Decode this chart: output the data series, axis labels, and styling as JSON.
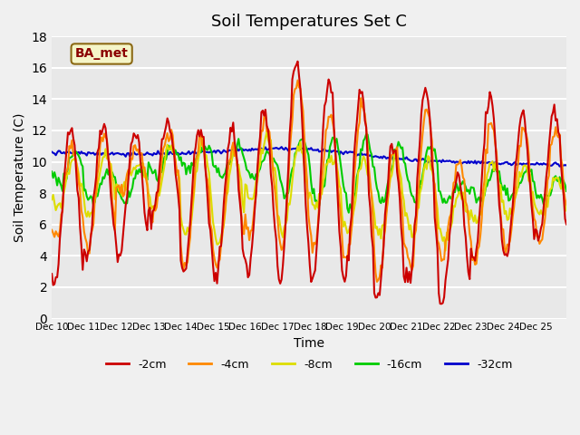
{
  "title": "Soil Temperatures Set C",
  "xlabel": "Time",
  "ylabel": "Soil Temperature (C)",
  "ylim": [
    0,
    18
  ],
  "x_tick_labels": [
    "Dec 10",
    "Dec 11",
    "Dec 12",
    "Dec 13",
    "Dec 14",
    "Dec 15",
    "Dec 16",
    "Dec 17",
    "Dec 18",
    "Dec 19",
    "Dec 20",
    "Dec 21",
    "Dec 22",
    "Dec 23",
    "Dec 24",
    "Dec 25"
  ],
  "annotation_text": "BA_met",
  "bg_color": "#e8e8e8",
  "grid_color": "#ffffff",
  "series": {
    "-2cm": {
      "color": "#cc0000",
      "lw": 1.5
    },
    "-4cm": {
      "color": "#ff8800",
      "lw": 1.5
    },
    "-8cm": {
      "color": "#dddd00",
      "lw": 1.5
    },
    "-16cm": {
      "color": "#00cc00",
      "lw": 1.5
    },
    "-32cm": {
      "color": "#0000cc",
      "lw": 1.5
    }
  }
}
